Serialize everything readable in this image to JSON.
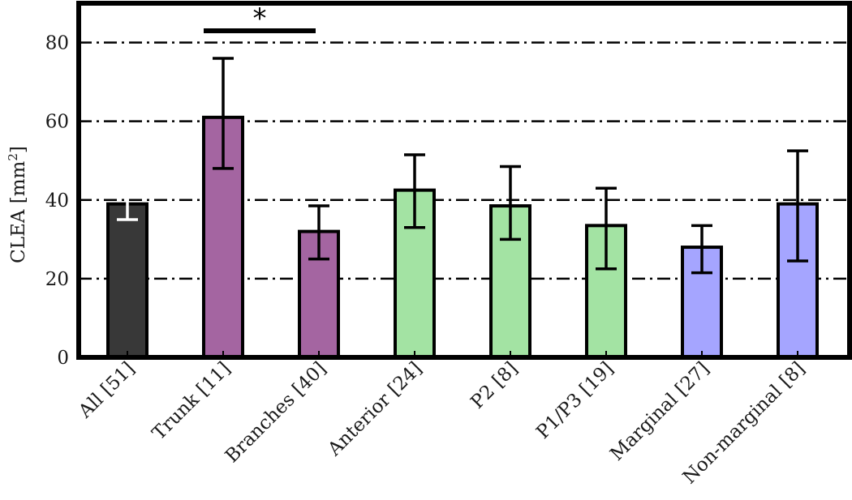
{
  "chart_data": {
    "type": "bar",
    "title": "",
    "xlabel": "",
    "ylabel": "CLEA [mm",
    "ylabel_superscript": "2",
    "ylabel_suffix": "]",
    "ylim": [
      0,
      90
    ],
    "yticks": [
      0,
      20,
      40,
      60,
      80
    ],
    "ytick_labels": [
      "0",
      "20",
      "40",
      "60",
      "80"
    ],
    "grid": "horizontal dash-dot at 20, 40, 60, 80",
    "categories": [
      "All [51]",
      "Trunk [11]",
      "Branches [40]",
      "Anterior [24]",
      "P2 [8]",
      "P1/P3 [19]",
      "Marginal [27]",
      "Non-marginal [8]"
    ],
    "values": [
      39,
      61,
      32,
      42.5,
      38.5,
      33.5,
      28,
      39
    ],
    "error_low": [
      35,
      48,
      25,
      33,
      30,
      22.5,
      21.5,
      24.5
    ],
    "error_high": [
      43.5,
      76,
      38.5,
      51.5,
      48.5,
      43,
      33.5,
      52.5
    ],
    "bar_colors": [
      "#383838",
      "#a465a1",
      "#a465a1",
      "#a3e3a3",
      "#a3e3a3",
      "#a3e3a3",
      "#a5a5ff",
      "#a5a5ff"
    ],
    "errorbar_colors": [
      "#ffffff",
      "#000000",
      "#000000",
      "#000000",
      "#000000",
      "#000000",
      "#000000",
      "#000000"
    ],
    "significance": {
      "from": "Trunk [11]",
      "to": "Branches [40]",
      "label": "*",
      "level": 83
    }
  }
}
